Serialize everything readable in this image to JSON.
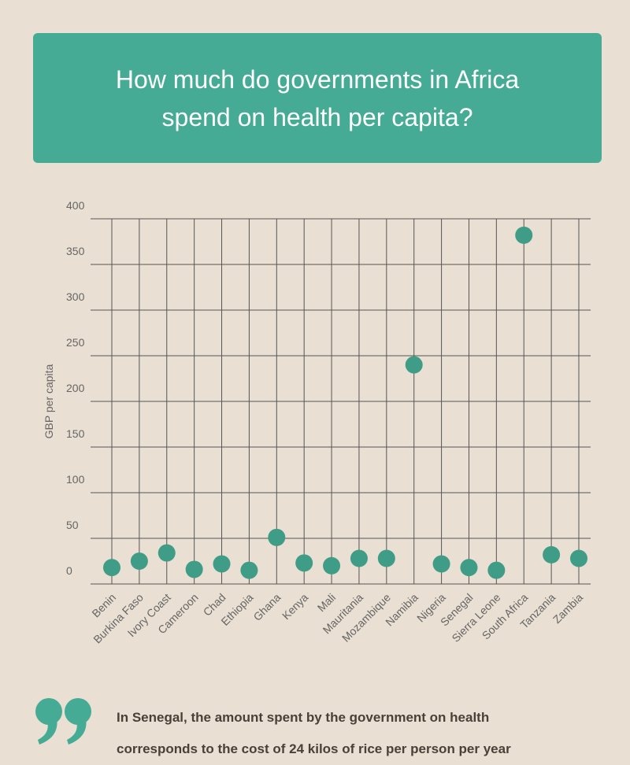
{
  "chart_data": {
    "type": "scatter",
    "title": "How much do governments in Africa spend on health per capita?",
    "y_label": "GBP per capita",
    "categories": [
      "Benin",
      "Burkina Faso",
      "Ivory Coast",
      "Cameroon",
      "Chad",
      "Ethiopia",
      "Ghana",
      "Kenya",
      "Mali",
      "Mauritania",
      "Mozambique",
      "Namibia",
      "Nigeria",
      "Senegal",
      "Sierra Leone",
      "South Africa",
      "Tanzania",
      "Zambia"
    ],
    "values": [
      18,
      25,
      34,
      16,
      22,
      15,
      51,
      23,
      20,
      28,
      28,
      240,
      22,
      18,
      15,
      382,
      32,
      28
    ],
    "color": "#3f9c86",
    "ylim": [
      0,
      400
    ],
    "yticks": [
      0,
      50,
      100,
      150,
      200,
      250,
      300,
      350,
      400
    ],
    "grid": true,
    "annotation": [
      "In Senegal, the amount spent by the government on health",
      "corresponds to the cost of 24 kilos of rice per person per year"
    ]
  }
}
